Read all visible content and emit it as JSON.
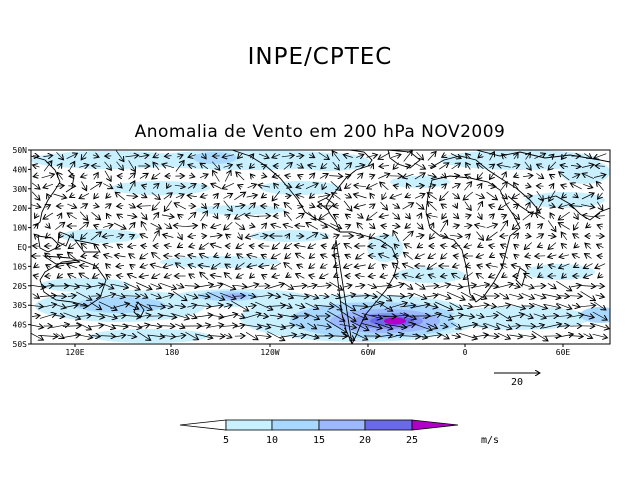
{
  "header": {
    "title": "INPE/CPTEC",
    "subtitle": "Anomalia de Vento em 200 hPa NOV2009"
  },
  "map": {
    "lat_labels": [
      "50N",
      "40N",
      "30N",
      "20N",
      "10N",
      "EQ",
      "10S",
      "20S",
      "30S",
      "40S",
      "50S"
    ],
    "lon_labels": [
      "120E",
      "180",
      "120W",
      "60W",
      "0",
      "60E"
    ],
    "reference_vector": {
      "label": "20"
    },
    "colorbar": {
      "labels": [
        "5",
        "10",
        "15",
        "20",
        "25"
      ],
      "unit": "m/s",
      "colors": [
        "#ffffff",
        "#c8f0ff",
        "#a8d8ff",
        "#9cb8ff",
        "#8294f0",
        "#6a6ae8",
        "#b000c8"
      ]
    },
    "colors": {
      "coast": "#000000",
      "arrow": "#000000",
      "bg": "#ffffff"
    }
  }
}
